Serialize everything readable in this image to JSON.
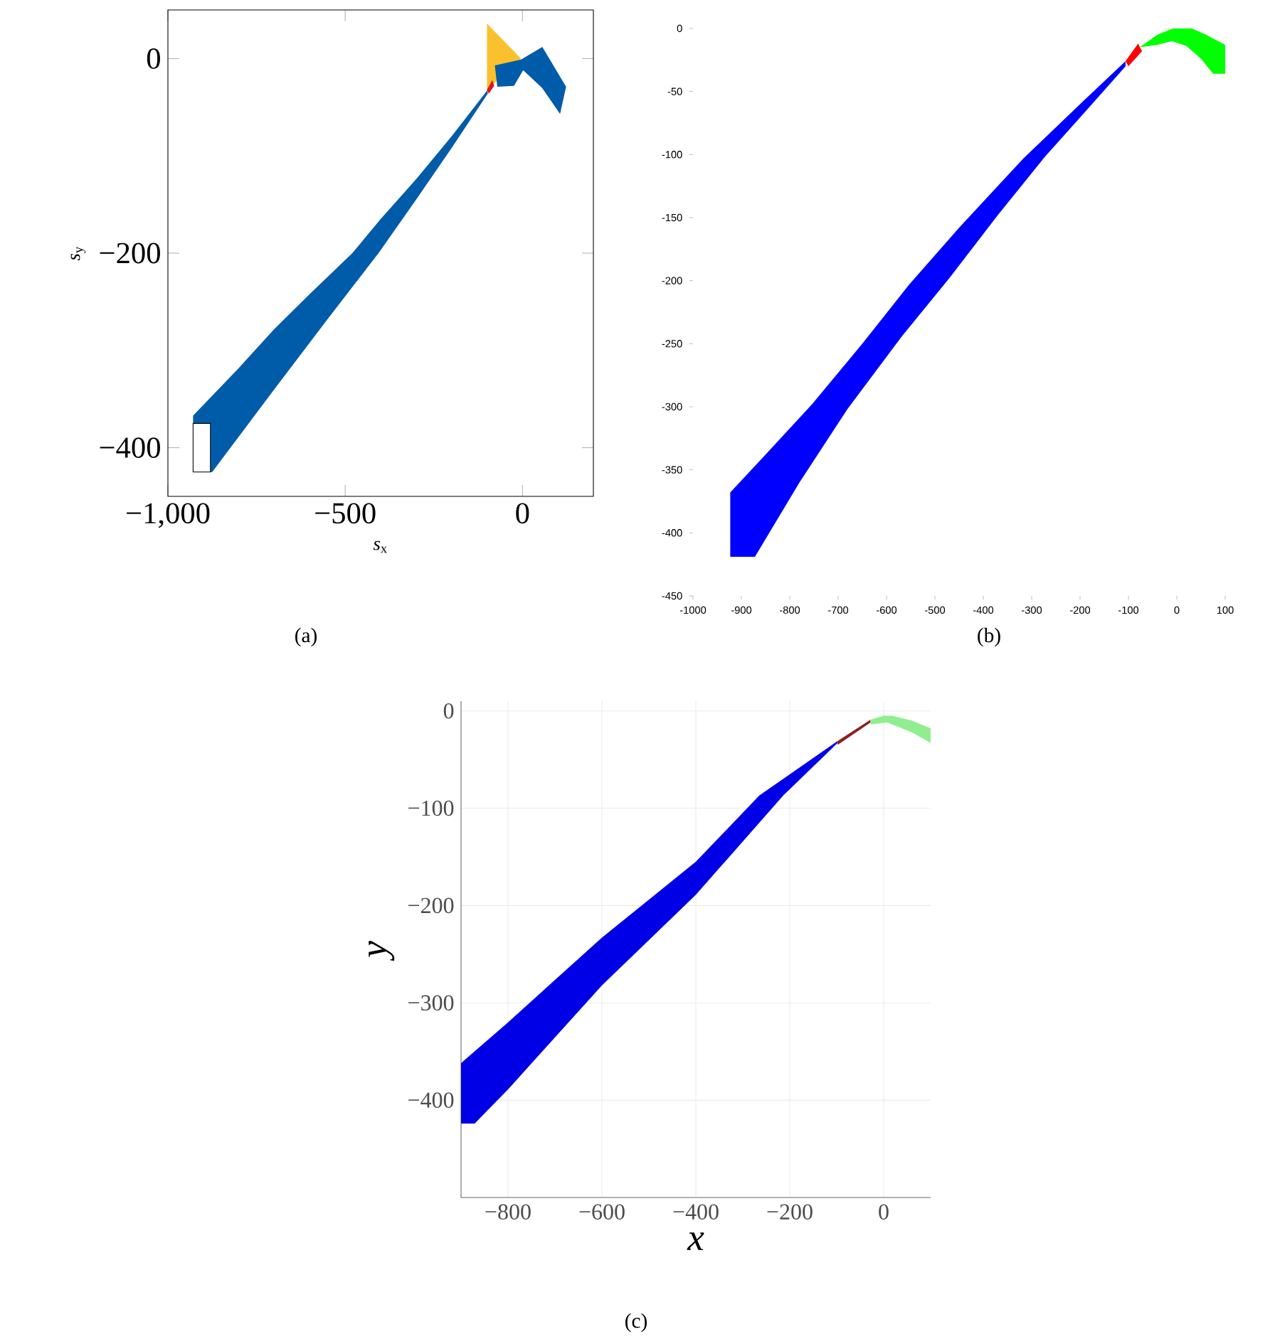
{
  "chart_data": [
    {
      "type": "area",
      "xlabel": "*s*$_{x}$",
      "ylabel": "*s*$_{y}$",
      "xlim": [
        -1000,
        200
      ],
      "ylim": [
        -450,
        50
      ],
      "xticks": [
        {
          "value": -1000,
          "label": "−1,000"
        },
        {
          "value": -500,
          "label": "−500"
        },
        0
      ],
      "yticks": [
        {
          "value": -400,
          "label": "−400"
        },
        {
          "value": -200,
          "label": "−200"
        },
        0
      ],
      "annotations": [
        "(a)"
      ],
      "series": [
        {
          "type": "area",
          "color": "#fbc02d",
          "x": [
            -100,
            -4,
            -100
          ],
          "values": [
            36,
            0,
            -32
          ]
        },
        {
          "type": "area",
          "color": "#005ca8",
          "x": [
            -929,
            -800,
            -700,
            -600,
            -480,
            -400,
            -300,
            -200,
            -98,
            -98,
            -200,
            -300,
            -406,
            -550,
            -700,
            -875,
            -929
          ],
          "values": [
            -367,
            -318,
            -278,
            -242,
            -200,
            -165,
            -124,
            -80,
            -32,
            -36,
            -92,
            -145,
            -200,
            -268,
            -340,
            -425,
            -425
          ]
        },
        {
          "type": "area",
          "color": "#005ca8",
          "x": [
            -78,
            -4,
            56,
            123,
            106,
            55,
            2,
            -24,
            -71
          ],
          "values": [
            -7,
            -1,
            12,
            -29,
            -57,
            -30,
            -12,
            -28,
            -29
          ]
        },
        {
          "type": "area",
          "color": "#e3121b",
          "x": [
            -100,
            -85,
            -80,
            -95
          ],
          "values": [
            -32,
            -22,
            -28,
            -36
          ]
        },
        {
          "type": "area",
          "color": "#ffffff",
          "line_style": "solid",
          "x": [
            -929,
            -880,
            -880,
            -929
          ],
          "values": [
            -375,
            -375,
            -425,
            -425
          ]
        }
      ]
    },
    {
      "type": "area",
      "xlim": [
        -1000,
        100
      ],
      "ylim": [
        -450,
        0
      ],
      "xticks": [
        -1000,
        -900,
        -800,
        -700,
        -600,
        -500,
        -400,
        -300,
        -200,
        -100,
        0,
        100
      ],
      "yticks": [
        0,
        -50,
        -100,
        -150,
        -200,
        -250,
        -300,
        -350,
        -400,
        -450
      ],
      "annotations": [
        "(b)"
      ],
      "series": [
        {
          "type": "area",
          "color": "#0000ff",
          "x": [
            -923,
            -850,
            -754,
            -650,
            -553,
            -450,
            -317,
            -200,
            -106,
            -106,
            -180,
            -273,
            -370,
            -470,
            -570,
            -681,
            -780,
            -872,
            -923
          ],
          "values": [
            -368,
            -338,
            -298,
            -250,
            -203,
            -158,
            -103,
            -60,
            -26,
            -30,
            -62,
            -102,
            -148,
            -198,
            -245,
            -302,
            -360,
            -419,
            -419
          ]
        },
        {
          "type": "area",
          "color": "#ff0000",
          "x": [
            -106,
            -80,
            -72,
            -100
          ],
          "values": [
            -26,
            -12,
            -18,
            -30
          ]
        },
        {
          "type": "area",
          "color": "#00ff00",
          "x": [
            -77,
            -40,
            -8,
            31,
            60,
            100,
            100,
            75,
            50,
            20,
            -10,
            -40
          ],
          "values": [
            -15,
            -5,
            0,
            0,
            -5,
            -13,
            -36,
            -36,
            -24,
            -14,
            -10,
            -13
          ]
        }
      ]
    },
    {
      "type": "area",
      "xlabel": "x",
      "ylabel": "y",
      "xlim": [
        -900,
        100
      ],
      "ylim": [
        -500,
        10
      ],
      "grid": true,
      "xticks": [
        {
          "value": -800,
          "label": "−800"
        },
        {
          "value": -600,
          "label": "−600"
        },
        {
          "value": -400,
          "label": "−400"
        },
        {
          "value": -200,
          "label": "−200"
        },
        0
      ],
      "yticks": [
        0,
        {
          "value": -100,
          "label": "−100"
        },
        {
          "value": -200,
          "label": "−200"
        },
        {
          "value": -300,
          "label": "−300"
        },
        {
          "value": -400,
          "label": "−400"
        }
      ],
      "annotations": [
        "(c)"
      ],
      "series": [
        {
          "type": "area",
          "color": "#0000e6",
          "x": [
            -900,
            -800,
            -600,
            -400,
            -265,
            -98,
            -98,
            -214,
            -400,
            -600,
            -800,
            -871,
            -900
          ],
          "values": [
            -362,
            -320,
            -233,
            -155,
            -87,
            -31,
            -33,
            -87,
            -189,
            -282,
            -389,
            -424,
            -424
          ]
        },
        {
          "type": "area",
          "color": "#8b2020",
          "x": [
            -98,
            -28,
            -28,
            -98
          ],
          "values": [
            -31,
            -9,
            -12,
            -35
          ]
        },
        {
          "type": "area",
          "color": "#90ee90",
          "x": [
            -28,
            0,
            18,
            60,
            100,
            100,
            60,
            8,
            -28
          ],
          "values": [
            -9,
            -5,
            -5,
            -10,
            -18,
            -33,
            -22,
            -12,
            -14
          ]
        }
      ]
    }
  ]
}
